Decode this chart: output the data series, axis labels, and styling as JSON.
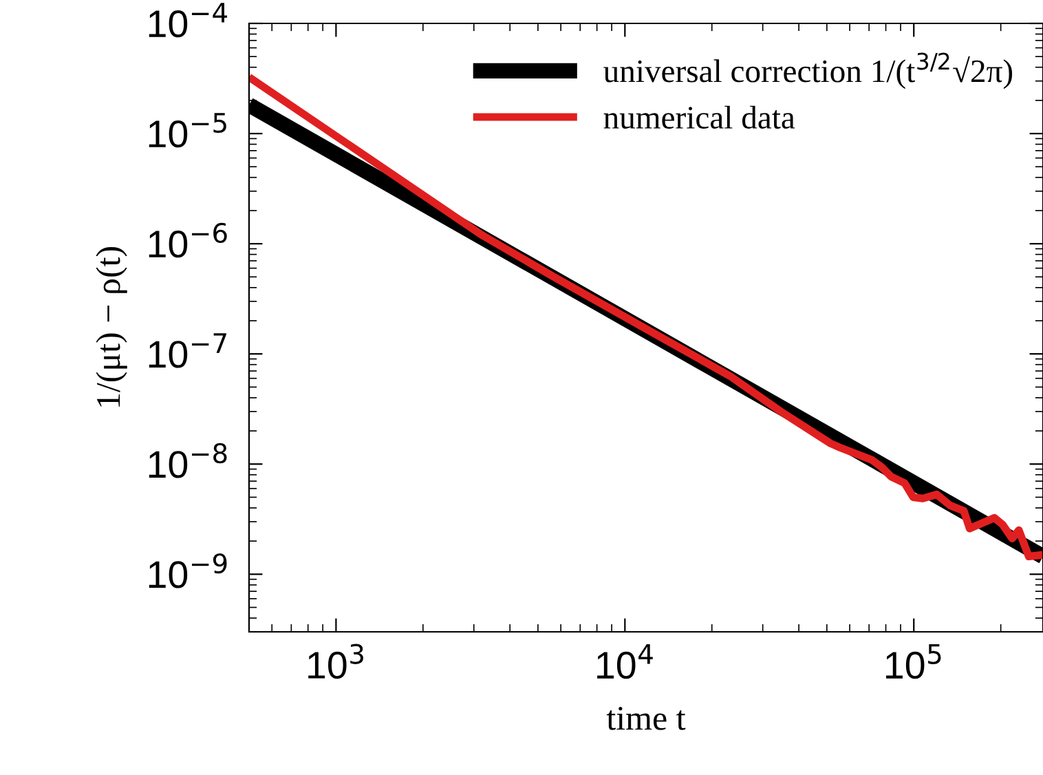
{
  "chart_data": {
    "type": "line",
    "xlabel": "time t",
    "ylabel": "1/(μt) − ρ(t)",
    "log": "xy",
    "grid": false,
    "legend": "top right",
    "marker": "none",
    "line_style": "solid",
    "xlim": [
      500,
      280000
    ],
    "ylim": [
      3e-10,
      0.0001
    ],
    "xticks": [
      {
        "value": 1000,
        "label": "10$^{3}$"
      },
      {
        "value": 10000,
        "label": "10$^{4}$"
      },
      {
        "value": 100000,
        "label": "10$^{5}$"
      }
    ],
    "yticks": [
      {
        "value": 1e-09,
        "label": "10$^{−9}$"
      },
      {
        "value": 1e-08,
        "label": "10$^{−8}$"
      },
      {
        "value": 1e-07,
        "label": "10$^{−7}$"
      },
      {
        "value": 1e-06,
        "label": "10$^{−6}$"
      },
      {
        "value": 1e-05,
        "label": "10$^{−5}$"
      },
      {
        "value": 0.0001,
        "label": "10$^{−4}$"
      }
    ],
    "series": [
      {
        "name": "universal correction 1/(t$^{3/2}$√2π)",
        "color": "#000000",
        "x": [
          500,
          280000
        ],
        "values": [
          1.82e-05,
          1.45e-09
        ]
      },
      {
        "name": "numerical data",
        "color": "#e02020",
        "x": [
          500,
          3215,
          5560,
          13370,
          23100,
          34700,
          51500,
          55600,
          71600,
          77300,
          83400,
          93000,
          99500,
          107400,
          120000,
          133700,
          149000,
          156000,
          190000,
          203000,
          219000,
          231000,
          250000,
          279000
        ],
        "values": [
          3.25e-05,
          1.19e-06,
          5.16e-07,
          1.41e-07,
          6.3e-08,
          2.99e-08,
          1.54e-08,
          1.41e-08,
          1.09e-08,
          9.4e-09,
          7.7e-09,
          6.7e-09,
          5e-09,
          4.87e-09,
          5.3e-09,
          4.2e-09,
          3.76e-09,
          2.6e-09,
          3.25e-09,
          2.82e-09,
          2.11e-09,
          2.51e-09,
          1.45e-09,
          1.5e-09
        ]
      }
    ]
  }
}
